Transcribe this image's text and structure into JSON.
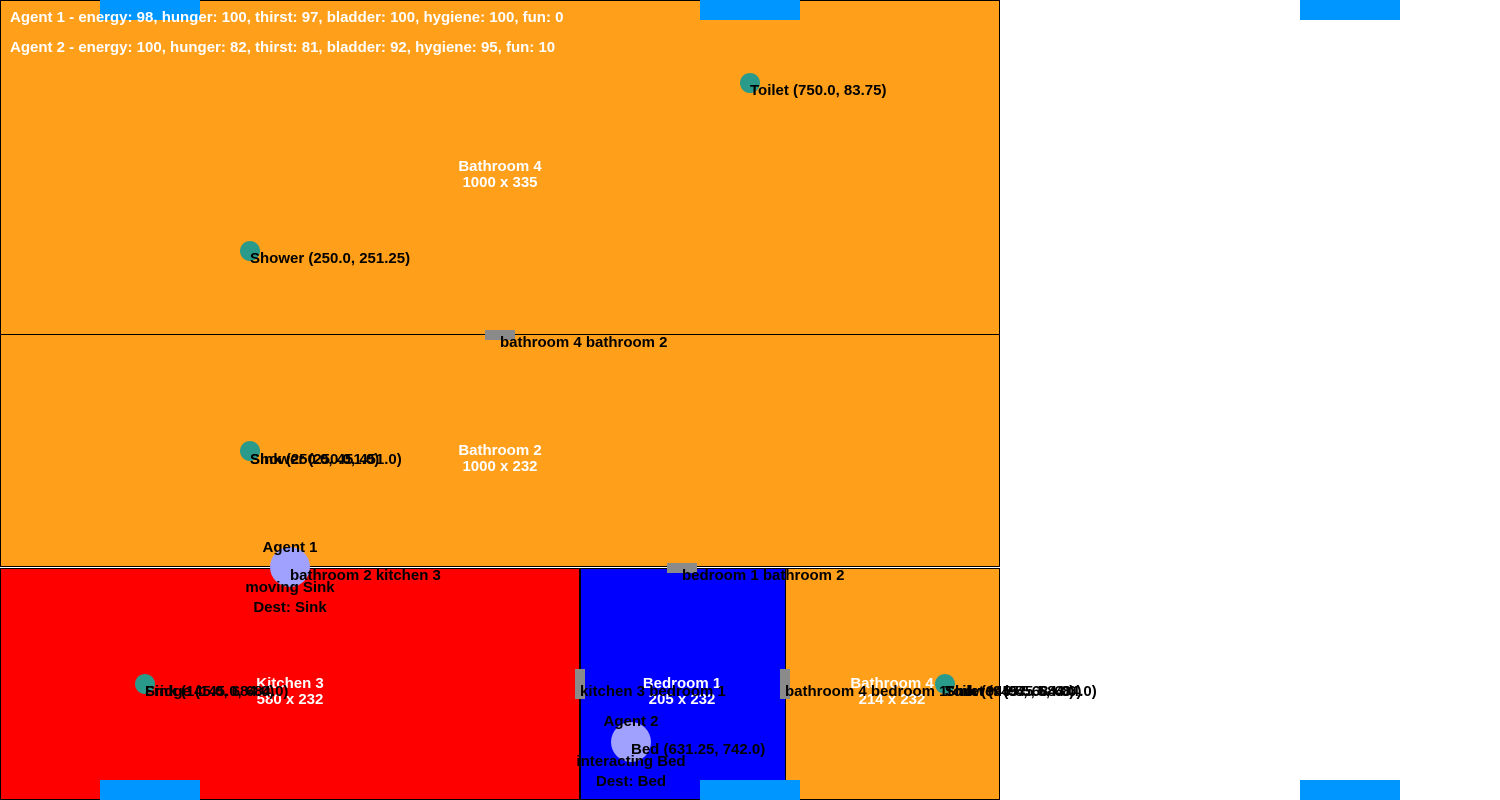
{
  "colors": {
    "bathroom": "#ff9f1a",
    "kitchen": "#ff0000",
    "bedroom": "#0000ff",
    "object": "#2a9a8a",
    "door": "#8a8a8a",
    "window": "#0096ff",
    "agent": "#a0a0ff"
  },
  "hud": {
    "agent1_needs": "Agent 1 - energy: 98, hunger: 100, thirst: 97, bladder: 100, hygiene: 100, fun: 0",
    "agent2_needs": "Agent 2 - energy: 100, hunger: 82, thirst: 81, bladder: 92, hygiene: 95, fun: 10"
  },
  "rooms": {
    "bathroom4_top": {
      "name": "Bathroom 4",
      "size": "1000 x 335"
    },
    "bathroom2": {
      "name": "Bathroom 2",
      "size": "1000 x 232"
    },
    "kitchen3": {
      "name": "Kitchen 3",
      "size": "580 x 232"
    },
    "bedroom1": {
      "name": "Bedroom 1",
      "size": "205 x 232"
    },
    "bathroom4_small": {
      "name": "Bathroom 4",
      "size": "214 x 232"
    }
  },
  "objects": {
    "toilet": "Toilet (750.0, 83.75)",
    "shower_top": "Shower (250.0, 251.25)",
    "bathroom2_overlap": "Sink (250.0, 451.0)",
    "bathroom2_overlap_2": "Shower (250.0, 451.0)",
    "kitchen_overlap": "Sink (145.0, 684.0)",
    "kitchen_overlap_2": "Fridge (145.0, 684.0)",
    "bed": "Bed (631.25, 742.0)",
    "bath_small_overlap": "Sink (945.5, 684.0)",
    "bath_small_overlap_2": "Shower (945.5, 684.0)",
    "bath_small_overlap_3": "Toilet (945.5, 684.0)"
  },
  "doors": {
    "bath4_bath2": "bathroom 4 bathroom 2",
    "bath2_kitchen3": "bathroom 2 kitchen 3",
    "bedroom1_bath2": "bedroom 1 bathroom 2",
    "kitchen3_bedroom1": "kitchen 3 bedroom 1",
    "bath4_bedroom1": "bathroom 4 bedroom 1"
  },
  "agents": {
    "agent1": {
      "name": "Agent 1",
      "status": "moving Sink",
      "dest": "Dest: Sink"
    },
    "agent2": {
      "name": "Agent 2",
      "status": "interacting Bed",
      "dest": "Dest: Bed"
    }
  }
}
